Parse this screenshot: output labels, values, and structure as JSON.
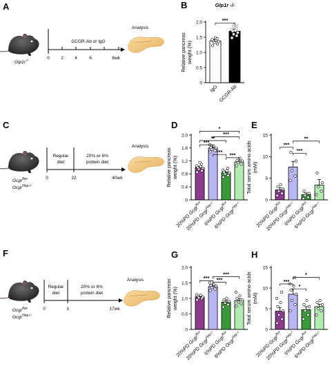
{
  "panels": {
    "a": {
      "letter": "A",
      "ab_label": "GCGR-Ab or IgG",
      "analysis": "Analysis",
      "times": [
        "0",
        "2",
        "4",
        "6",
        "8wk"
      ],
      "mouse": {
        "base": "Glp1r",
        "sup": "-/-"
      }
    },
    "c": {
      "letter": "C",
      "diet1": [
        "Regular",
        "diet"
      ],
      "diet2": [
        "20% or 6%",
        "protein diet"
      ],
      "analysis": "Analysis",
      "times": [
        "0",
        "22",
        "40wk"
      ],
      "mouse": [
        {
          "base": "Gcgr",
          "sup": "flox"
        },
        {
          "base": "Gcgr",
          "sup": "Hep-/-"
        }
      ]
    },
    "f": {
      "letter": "F",
      "diet1": [
        "Regular",
        "diet"
      ],
      "diet2": [
        "20% or 6%",
        "protein diet"
      ],
      "analysis": "Analysis",
      "times": [
        "0",
        "3",
        "17wk"
      ],
      "mouse": [
        {
          "base": "Gcgr",
          "sup": "flox"
        },
        {
          "base": "Gcgr",
          "sup": "Hep-/-"
        }
      ]
    }
  },
  "chart_data": [
    {
      "panel": "B",
      "type": "bar",
      "title": "Glp1r -/-",
      "ylabel": [
        "Relative pancreas",
        "weight (%)"
      ],
      "ylim": [
        0,
        2.0
      ],
      "yticks": [
        0,
        0.5,
        1.0,
        1.5,
        2.0
      ],
      "categories": [
        "IgG",
        "GCGR-Ab"
      ],
      "values": [
        1.38,
        1.7
      ],
      "errors": [
        0.05,
        0.06
      ],
      "fills": [
        "#ffffff",
        "#000000"
      ],
      "points": [
        [
          1.22,
          1.28,
          1.32,
          1.35,
          1.38,
          1.4,
          1.42,
          1.45,
          1.48
        ],
        [
          1.48,
          1.55,
          1.6,
          1.65,
          1.7,
          1.72,
          1.75,
          1.78,
          1.82,
          1.85,
          1.88,
          1.92
        ]
      ],
      "significance": [
        {
          "from": 0,
          "to": 1,
          "label": "***",
          "y": 1.97
        }
      ]
    },
    {
      "panel": "D",
      "type": "bar",
      "ylabel": [
        "Relative pancreas",
        "weight (%)"
      ],
      "ylim": [
        0,
        2.0
      ],
      "yticks": [
        0,
        0.4,
        0.8,
        1.2,
        1.6,
        2.0
      ],
      "categories": [
        {
          "pre": "20%PD ",
          "base": "Gcgr",
          "sup": "flox"
        },
        {
          "pre": "20%PD ",
          "base": "Gcgr",
          "sup": "Hep-/-"
        },
        {
          "pre": "6%PD ",
          "base": "Gcgr",
          "sup": "flox"
        },
        {
          "pre": "6%PD ",
          "base": "Gcgr",
          "sup": "Hep-/-"
        }
      ],
      "values": [
        1.0,
        1.6,
        0.85,
        1.17
      ],
      "errors": [
        0.04,
        0.04,
        0.03,
        0.04
      ],
      "fills": [
        "#8c3a8c",
        "#b8b6f2",
        "#3a9a3a",
        "#b2ecb2"
      ],
      "points": [
        [
          0.85,
          0.9,
          0.95,
          0.98,
          1.0,
          1.03,
          1.05,
          1.1,
          1.15
        ],
        [
          1.48,
          1.52,
          1.56,
          1.6,
          1.62,
          1.66,
          1.7
        ],
        [
          0.7,
          0.75,
          0.8,
          0.83,
          0.86,
          0.9,
          0.92,
          0.97
        ],
        [
          1.05,
          1.1,
          1.15,
          1.2,
          1.22,
          1.28
        ]
      ],
      "significance": [
        {
          "from": 0,
          "to": 1,
          "label": "***",
          "y": 1.7
        },
        {
          "from": 1,
          "to": 2,
          "label": "***",
          "y": 1.4
        },
        {
          "from": 2,
          "to": 3,
          "label": "***",
          "y": 1.3
        },
        {
          "from": 0,
          "to": 2,
          "label": "**",
          "y": 1.83
        },
        {
          "from": 1,
          "to": 3,
          "label": "***",
          "y": 1.95
        },
        {
          "from": 0,
          "to": 3,
          "label": "*",
          "y": 2.12
        }
      ]
    },
    {
      "panel": "E",
      "type": "bar",
      "ylabel": [
        "Total serum amino acids",
        "(mM)"
      ],
      "ylim": [
        0,
        15
      ],
      "yticks": [
        0,
        5,
        10,
        15
      ],
      "categories": [
        {
          "pre": "20%PD ",
          "base": "Gcgr",
          "sup": "flox"
        },
        {
          "pre": "20%PD ",
          "base": "Gcgr",
          "sup": "Hep-/-"
        },
        {
          "pre": "6%PD ",
          "base": "Gcgr",
          "sup": "flox"
        },
        {
          "pre": "6%PD ",
          "base": "Gcgr",
          "sup": "Hep-/-"
        }
      ],
      "values": [
        2.3,
        7.6,
        1.2,
        3.4
      ],
      "errors": [
        0.5,
        1.3,
        0.4,
        1.3
      ],
      "fills": [
        "#8c3a8c",
        "#b8b6f2",
        "#3a9a3a",
        "#b2ecb2"
      ],
      "points": [
        [
          1.0,
          1.5,
          2.0,
          2.5,
          3.0,
          3.5
        ],
        [
          4.5,
          5.5,
          6.8,
          9.0,
          11.0
        ],
        [
          0.3,
          0.6,
          1.0,
          1.5,
          2.0
        ],
        [
          1.2,
          2.0,
          3.0,
          4.0,
          6.2
        ]
      ],
      "significance": [
        {
          "from": 0,
          "to": 1,
          "label": "***",
          "y": 12.2
        },
        {
          "from": 1,
          "to": 2,
          "label": "***",
          "y": 10.8
        },
        {
          "from": 1,
          "to": 3,
          "label": "**",
          "y": 13.6
        }
      ]
    },
    {
      "panel": "G",
      "type": "bar",
      "ylabel": [
        "Relative pancreas",
        "weight (%)"
      ],
      "ylim": [
        0,
        2.0
      ],
      "yticks": [
        0,
        0.5,
        1.0,
        1.5,
        2.0
      ],
      "categories": [
        {
          "pre": "20%PD ",
          "base": "Gcgr",
          "sup": "flox"
        },
        {
          "pre": "20%PD ",
          "base": "Gcgr",
          "sup": "Hep-/-"
        },
        {
          "pre": "6%PD ",
          "base": "Gcgr",
          "sup": "flox"
        },
        {
          "pre": "6%PD ",
          "base": "Gcgr",
          "sup": "Hep-/-"
        }
      ],
      "values": [
        1.05,
        1.38,
        0.88,
        0.93
      ],
      "errors": [
        0.03,
        0.04,
        0.05,
        0.06
      ],
      "fills": [
        "#8c3a8c",
        "#b8b6f2",
        "#3a9a3a",
        "#b2ecb2"
      ],
      "points": [
        [
          0.95,
          1.0,
          1.02,
          1.05,
          1.08,
          1.1,
          1.12
        ],
        [
          1.25,
          1.3,
          1.35,
          1.4,
          1.42,
          1.45,
          1.5
        ],
        [
          0.72,
          0.8,
          0.85,
          0.9,
          0.95,
          1.0
        ],
        [
          0.75,
          0.82,
          0.88,
          0.95,
          1.0,
          1.08,
          1.2
        ]
      ],
      "significance": [
        {
          "from": 0,
          "to": 1,
          "label": "***",
          "y": 1.57
        },
        {
          "from": 1,
          "to": 2,
          "label": "***",
          "y": 1.52
        },
        {
          "from": 1,
          "to": 3,
          "label": "***",
          "y": 1.7
        }
      ]
    },
    {
      "panel": "H",
      "type": "bar",
      "ylabel": [
        "Total serum amino acids",
        "(mM)"
      ],
      "ylim": [
        0,
        15
      ],
      "yticks": [
        0,
        5,
        10,
        15
      ],
      "categories": [
        {
          "pre": "20%PD ",
          "base": "Gcgr",
          "sup": "flox"
        },
        {
          "pre": "20%PD ",
          "base": "Gcgr",
          "sup": "Hep-/-"
        },
        {
          "pre": "6%PD ",
          "base": "Gcgr",
          "sup": "flox"
        },
        {
          "pre": "6%PD ",
          "base": "Gcgr",
          "sup": "Hep-/-"
        }
      ],
      "values": [
        4.4,
        8.5,
        4.8,
        5.5
      ],
      "errors": [
        0.9,
        1.3,
        0.7,
        0.6
      ],
      "fills": [
        "#8c3a8c",
        "#b8b6f2",
        "#3a9a3a",
        "#b2ecb2"
      ],
      "points": [
        [
          1.5,
          2.5,
          3.5,
          4.5,
          5.5,
          6.5,
          7.5,
          9.0
        ],
        [
          4.5,
          6.0,
          7.0,
          8.5,
          9.5,
          10.5,
          11.0,
          12.5
        ],
        [
          2.5,
          3.5,
          4.5,
          5.5,
          6.0,
          7.0
        ],
        [
          3.5,
          4.5,
          5.0,
          6.0,
          6.5,
          7.0
        ]
      ],
      "significance": [
        {
          "from": 0,
          "to": 1,
          "label": "***",
          "y": 11.0
        },
        {
          "from": 1,
          "to": 2,
          "label": "*",
          "y": 9.8
        },
        {
          "from": 1,
          "to": 3,
          "label": "*",
          "y": 12.6
        }
      ]
    }
  ]
}
